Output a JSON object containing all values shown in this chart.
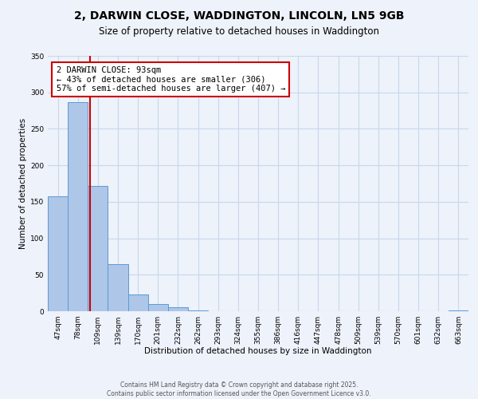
{
  "title": "2, DARWIN CLOSE, WADDINGTON, LINCOLN, LN5 9GB",
  "subtitle": "Size of property relative to detached houses in Waddington",
  "xlabel": "Distribution of detached houses by size in Waddington",
  "ylabel": "Number of detached properties",
  "bar_labels": [
    "47sqm",
    "78sqm",
    "109sqm",
    "139sqm",
    "170sqm",
    "201sqm",
    "232sqm",
    "262sqm",
    "293sqm",
    "324sqm",
    "355sqm",
    "386sqm",
    "416sqm",
    "447sqm",
    "478sqm",
    "509sqm",
    "539sqm",
    "570sqm",
    "601sqm",
    "632sqm",
    "663sqm"
  ],
  "bar_values": [
    157,
    287,
    172,
    65,
    23,
    10,
    6,
    1,
    0,
    0,
    0,
    0,
    0,
    0,
    0,
    0,
    0,
    0,
    0,
    0,
    1
  ],
  "bar_color": "#aec6e8",
  "bar_edge_color": "#5b9bd5",
  "ylim": [
    0,
    350
  ],
  "yticks": [
    0,
    50,
    100,
    150,
    200,
    250,
    300,
    350
  ],
  "property_line_x": 1.6,
  "annotation_line1": "2 DARWIN CLOSE: 93sqm",
  "annotation_line2": "← 43% of detached houses are smaller (306)",
  "annotation_line3": "57% of semi-detached houses are larger (407) →",
  "box_color": "#ffffff",
  "box_edge_color": "#cc0000",
  "line_color": "#cc0000",
  "grid_color": "#c8d8ec",
  "background_color": "#eef2fa",
  "footer_text": "Contains HM Land Registry data © Crown copyright and database right 2025.\nContains public sector information licensed under the Open Government Licence v3.0.",
  "title_fontsize": 10,
  "subtitle_fontsize": 8.5,
  "axis_label_fontsize": 7.5,
  "tick_fontsize": 6.5,
  "annotation_fontsize": 7.5,
  "footer_fontsize": 5.5
}
